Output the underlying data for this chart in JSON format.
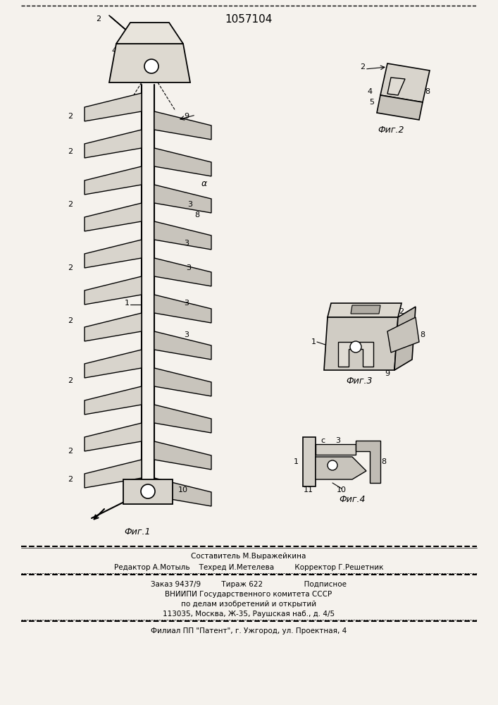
{
  "patent_number": "1057104",
  "background_color": "#f0ede8",
  "page_color": "#f5f2ed",
  "title_text": "1057104",
  "footer_lines": [
    "Составитель М.Выражейкина",
    "Редактор А.Мотыль    Техред И.Метелева         Корректор Г.Решетник",
    "Заказ 9437/9         Тираж 622                  Подписное",
    "ВНИИПИ Государственного комитета СССР",
    "по делам изобретений и открытий",
    "113035, Москва, Ж-35, Раушская наб., д. 4/5",
    "Филиал ПП \"Патент\", г. Ужгород, ул. Проектная, 4"
  ],
  "fig_labels": [
    "Фиг.1",
    "Фиг.2",
    "Фиг.3",
    "Фиг.4"
  ]
}
